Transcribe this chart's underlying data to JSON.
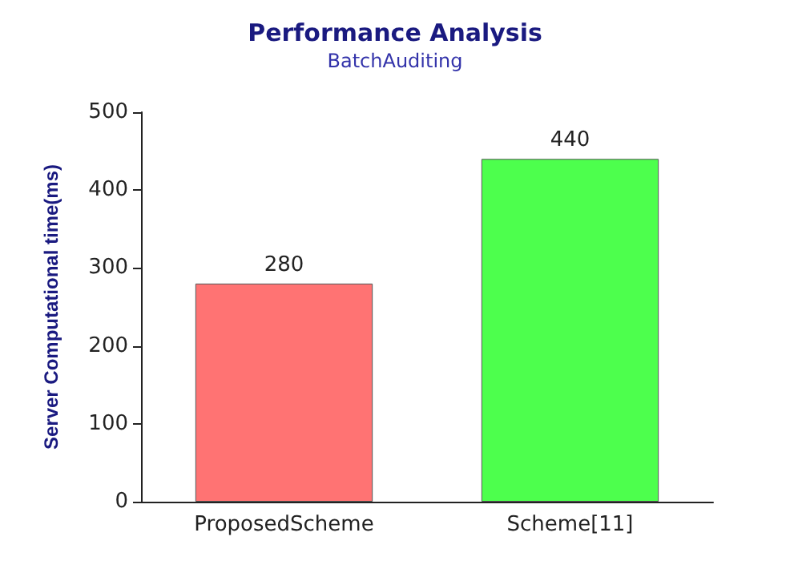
{
  "chart_data": {
    "type": "bar",
    "title": "Performance Analysis",
    "subtitle": "BatchAuditing",
    "ylabel": "Server Computational time(ms)",
    "categories": [
      "ProposedScheme",
      "Scheme[11]"
    ],
    "values": [
      280,
      440
    ],
    "colors": [
      "#ff7373",
      "#4dff4d"
    ],
    "ylim": [
      0,
      500
    ],
    "yticks": [
      0,
      100,
      200,
      300,
      400,
      500
    ],
    "grid": false,
    "data_labels": true
  }
}
